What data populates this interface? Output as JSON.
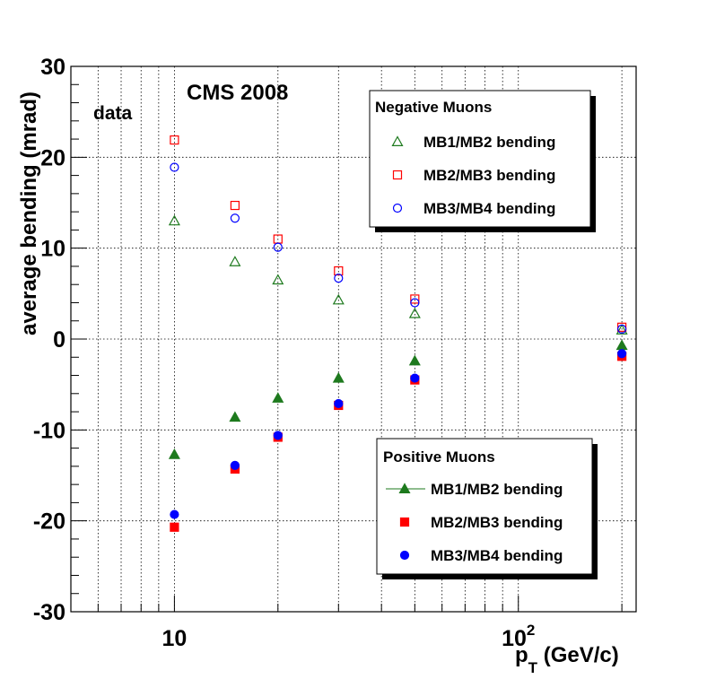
{
  "chart_data": {
    "type": "scatter",
    "title": "CMS 2008",
    "annotation": "data",
    "xscale": "log",
    "xlim": [
      5,
      220
    ],
    "ylim": [
      -30,
      30
    ],
    "xlabel_main": "p",
    "xlabel_sub": "T",
    "xlabel_units": " (GeV/c)",
    "ylabel": "average bending (mrad)",
    "x_ticks": [
      {
        "value": 10,
        "base": "10",
        "exp": ""
      },
      {
        "value": 100,
        "base": "10",
        "exp": "2"
      }
    ],
    "y_ticks": [
      -30,
      -20,
      -10,
      0,
      10,
      20,
      30
    ],
    "y_tick_labels": [
      "-30",
      "-20",
      "-10",
      "0",
      "10",
      "20",
      "30"
    ],
    "grid": true,
    "x": [
      10,
      15,
      20,
      30,
      50,
      200
    ],
    "legends": [
      {
        "title": "Negative Muons",
        "placement": "top-right",
        "entries": [
          0,
          1,
          2
        ]
      },
      {
        "title": "Positive Muons",
        "placement": "bottom-right",
        "entries": [
          3,
          4,
          5
        ]
      }
    ],
    "series": [
      {
        "name": "MB1/MB2 bending",
        "group": "Negative Muons",
        "marker": "triangle-open",
        "color": "#1e7a1e",
        "values": [
          13.0,
          8.5,
          6.5,
          4.3,
          2.8,
          1.0
        ]
      },
      {
        "name": "MB2/MB3 bending",
        "group": "Negative Muons",
        "marker": "square-open",
        "color": "#ff0000",
        "values": [
          21.9,
          14.7,
          11.0,
          7.5,
          4.4,
          1.3
        ]
      },
      {
        "name": "MB3/MB4 bending",
        "group": "Negative Muons",
        "marker": "circle-open",
        "color": "#0000ff",
        "values": [
          18.9,
          13.3,
          10.1,
          6.7,
          4.0,
          1.1
        ]
      },
      {
        "name": "MB1/MB2 bending",
        "group": "Positive Muons",
        "marker": "triangle-filled",
        "color": "#1e7a1e",
        "values": [
          -12.7,
          -8.6,
          -6.5,
          -4.3,
          -2.4,
          -0.7
        ]
      },
      {
        "name": "MB2/MB3 bending",
        "group": "Positive Muons",
        "marker": "square-filled",
        "color": "#ff0000",
        "values": [
          -20.7,
          -14.3,
          -10.8,
          -7.3,
          -4.5,
          -1.9
        ]
      },
      {
        "name": "MB3/MB4 bending",
        "group": "Positive Muons",
        "marker": "circle-filled",
        "color": "#0000ff",
        "values": [
          -19.3,
          -13.9,
          -10.6,
          -7.1,
          -4.3,
          -1.6
        ]
      }
    ]
  }
}
